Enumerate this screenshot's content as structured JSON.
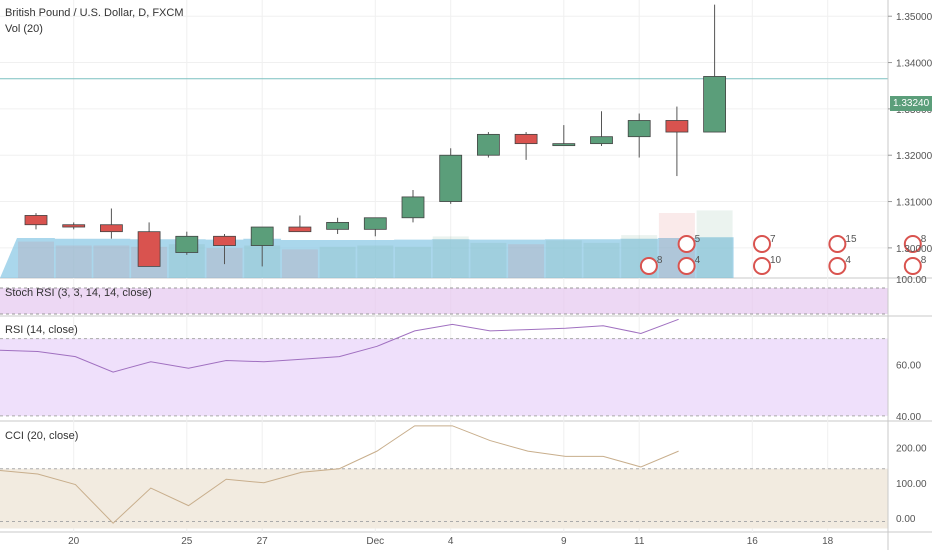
{
  "header": {
    "symbol_title": "British Pound / U.S. Dollar, D, FXCM",
    "volume_label": "Vol (20)"
  },
  "current_price": "1.33240",
  "panes": {
    "stoch_label": "Stoch RSI (3, 3, 14, 14, close)",
    "rsi_label": "RSI (14, close)",
    "cci_label": "CCI (20, close)"
  },
  "colors": {
    "bull": "#5b9e7a",
    "bear": "#d9534f",
    "volume": "#8ecae6",
    "stoch_bg": "#e6c8f0",
    "rsi_bg": "#efe0fb",
    "rsi_line": "#a070c0",
    "cci_bg": "#f2ebe0",
    "cci_line": "#c8ae8c"
  },
  "chart_data": [
    {
      "type": "candlestick",
      "title": "British Pound / U.S. Dollar, D, FXCM",
      "ylim": [
        1.2935,
        1.3535
      ],
      "y_ticks": [
        "1.35000",
        "1.34000",
        "1.33000",
        "1.32000",
        "1.31000",
        "1.30000"
      ],
      "x_ticks": [
        "20",
        "25",
        "27",
        "Dec",
        "4",
        "9",
        "11",
        "16",
        "18"
      ],
      "reference_line": 1.3365,
      "candles": [
        {
          "o": 1.307,
          "h": 1.3075,
          "l": 1.304,
          "c": 1.305
        },
        {
          "o": 1.305,
          "h": 1.3055,
          "l": 1.304,
          "c": 1.3045
        },
        {
          "o": 1.305,
          "h": 1.3085,
          "l": 1.302,
          "c": 1.3035
        },
        {
          "o": 1.3035,
          "h": 1.3055,
          "l": 1.296,
          "c": 1.296
        },
        {
          "o": 1.299,
          "h": 1.3035,
          "l": 1.2985,
          "c": 1.3025
        },
        {
          "o": 1.3025,
          "h": 1.303,
          "l": 1.2965,
          "c": 1.3005
        },
        {
          "o": 1.3005,
          "h": 1.3045,
          "l": 1.296,
          "c": 1.3045
        },
        {
          "o": 1.3045,
          "h": 1.307,
          "l": 1.3035,
          "c": 1.3035
        },
        {
          "o": 1.304,
          "h": 1.3065,
          "l": 1.303,
          "c": 1.3055
        },
        {
          "o": 1.304,
          "h": 1.3065,
          "l": 1.3025,
          "c": 1.3065
        },
        {
          "o": 1.3065,
          "h": 1.3125,
          "l": 1.3055,
          "c": 1.311
        },
        {
          "o": 1.31,
          "h": 1.3215,
          "l": 1.3095,
          "c": 1.32
        },
        {
          "o": 1.32,
          "h": 1.325,
          "l": 1.3195,
          "c": 1.3245
        },
        {
          "o": 1.3245,
          "h": 1.325,
          "l": 1.319,
          "c": 1.3225
        },
        {
          "o": 1.3225,
          "h": 1.3265,
          "l": 1.322,
          "c": 1.3225
        },
        {
          "o": 1.3225,
          "h": 1.3295,
          "l": 1.322,
          "c": 1.324
        },
        {
          "o": 1.324,
          "h": 1.329,
          "l": 1.3195,
          "c": 1.3275
        },
        {
          "o": 1.3275,
          "h": 1.3305,
          "l": 1.3155,
          "c": 1.325
        },
        {
          "o": 1.325,
          "h": 1.3525,
          "l": 1.325,
          "c": 1.337
        }
      ],
      "volume": [
        1.0,
        0.98,
        0.98,
        0.97,
        0.97,
        0.96,
        0.98,
        0.95,
        0.95,
        0.95,
        0.96,
        0.97,
        0.96,
        0.96,
        0.97,
        0.97,
        0.98,
        1.0,
        1.02
      ],
      "volume_bars": [
        0.28,
        0.25,
        0.25,
        0.24,
        0.26,
        0.23,
        0.25,
        0.22,
        0.24,
        0.25,
        0.24,
        0.32,
        0.27,
        0.26,
        0.29,
        0.27,
        0.33,
        0.5,
        0.52
      ],
      "events": {
        "row1": [
          "5",
          "7",
          "15",
          "8"
        ],
        "row2": [
          "8",
          "4",
          "10",
          "4",
          "8"
        ]
      }
    },
    {
      "type": "line",
      "title": "Stoch RSI (3, 3, 14, 14, close)",
      "y_ticks": [
        "100.00"
      ],
      "ylim": [
        0,
        100
      ]
    },
    {
      "type": "line",
      "title": "RSI (14, close)",
      "ylim": [
        38,
        78
      ],
      "y_ticks": [
        "60.00",
        "40.00"
      ],
      "values": [
        65.5,
        65,
        63,
        57,
        61,
        58.5,
        61.5,
        61,
        62,
        63,
        67,
        73,
        75.5,
        73,
        73.5,
        74,
        75,
        72,
        77.5
      ]
    },
    {
      "type": "line",
      "title": "CCI (20, close)",
      "ylim": [
        -40,
        270
      ],
      "y_ticks": [
        "200.00",
        "100.00",
        "0.00"
      ],
      "values": [
        135,
        125,
        95,
        -15,
        85,
        35,
        110,
        100,
        130,
        140,
        190,
        285,
        285,
        220,
        190,
        175,
        175,
        145,
        190
      ]
    }
  ]
}
